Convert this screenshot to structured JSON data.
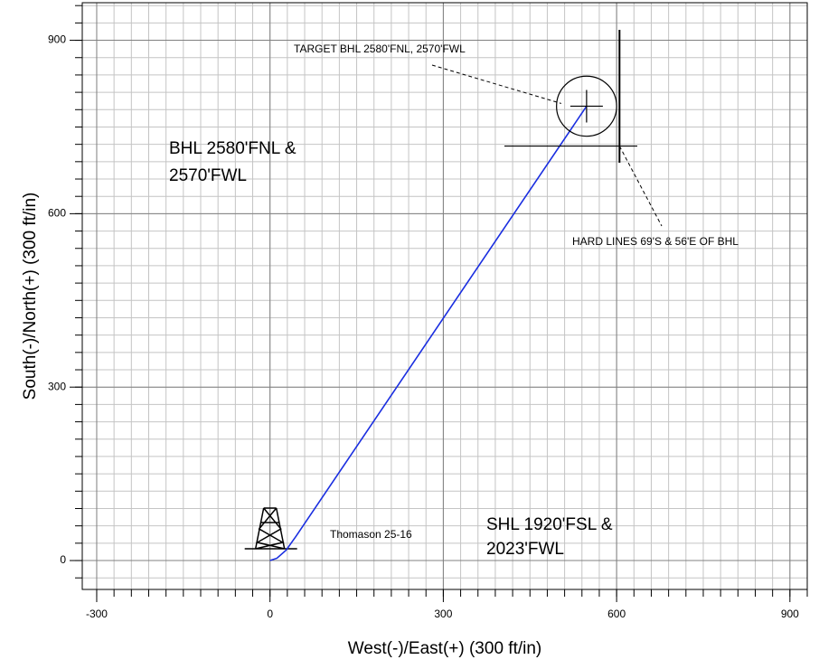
{
  "chart_data": {
    "type": "line",
    "xlabel": "West(-)/East(+) (300 ft/in)",
    "ylabel": "South(-)/North(+) (300 ft/in)",
    "xlim": [
      -325,
      930
    ],
    "ylim": [
      -50,
      965
    ],
    "xticks": [
      -300,
      0,
      300,
      600,
      900
    ],
    "yticks": [
      0,
      300,
      600,
      900
    ],
    "grid": true,
    "minor_grid_step": 30,
    "series": [
      {
        "name": "Thomason 25-16",
        "color": "#1a2ee0",
        "x": [
          0,
          12,
          28,
          45,
          548
        ],
        "y": [
          0,
          4,
          18,
          42,
          786
        ]
      }
    ],
    "target": {
      "label": "TARGET BHL 2580'FNL, 2570'FWL",
      "x": 548,
      "y": 786,
      "radius": 52
    },
    "hard_lines": {
      "label": "HARD LINES 69'S & 56'E OF BHL",
      "x": 605,
      "y": 717
    },
    "annotations": [
      "BHL 2580'FNL &",
      "2570'FWL",
      "SHL 1920'FSL &",
      "2023'FWL"
    ]
  }
}
